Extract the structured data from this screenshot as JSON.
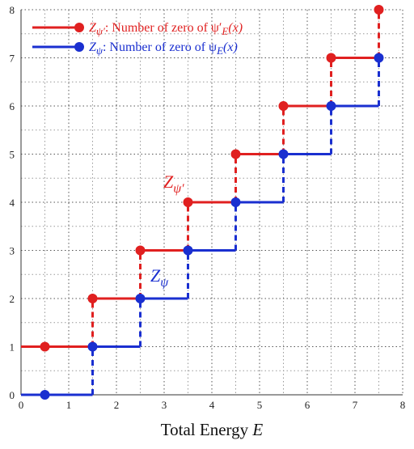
{
  "chart_data": {
    "type": "line",
    "step": true,
    "xlabel": {
      "text": "Total Energy ",
      "italic": "E"
    },
    "xlim": [
      0,
      8
    ],
    "ylim": [
      0,
      8
    ],
    "xticks": [
      "0",
      "1",
      "2",
      "3",
      "4",
      "5",
      "6",
      "7",
      "8"
    ],
    "yticks": [
      "0",
      "1",
      "2",
      "3",
      "4",
      "5",
      "6",
      "7",
      "8"
    ],
    "grid": true,
    "legend_position": "top-left",
    "series": [
      {
        "key": "zpsiprime",
        "legend": {
          "symbol": "Z",
          "sub": "ψ′",
          "text": ": Number of zero of ψ′",
          "sub2": "E",
          "tail": "(x)"
        },
        "color": "#e02020",
        "points": [
          [
            0.5,
            1
          ],
          [
            1.5,
            2
          ],
          [
            2.5,
            3
          ],
          [
            3.5,
            4
          ],
          [
            4.5,
            5
          ],
          [
            5.5,
            6
          ],
          [
            6.5,
            7
          ],
          [
            7.5,
            8
          ]
        ],
        "start_level": 1
      },
      {
        "key": "zpsi",
        "legend": {
          "symbol": "Z",
          "sub": "ψ",
          "text": ": Number of zero of ψ",
          "sub2": "E",
          "tail": "(x)"
        },
        "color": "#1a2fd0",
        "points": [
          [
            0.5,
            0
          ],
          [
            1.5,
            1
          ],
          [
            2.5,
            2
          ],
          [
            3.5,
            3
          ],
          [
            4.5,
            4
          ],
          [
            5.5,
            5
          ],
          [
            6.5,
            6
          ],
          [
            7.5,
            7
          ]
        ],
        "start_level": 0
      }
    ],
    "annotations": [
      {
        "symbol": "Z",
        "sub": "ψ′",
        "color": "#e02020",
        "x": 3.2,
        "y": 4.3
      },
      {
        "symbol": "Z",
        "sub": "ψ",
        "color": "#1a2fd0",
        "x": 2.9,
        "y": 2.35
      }
    ]
  }
}
